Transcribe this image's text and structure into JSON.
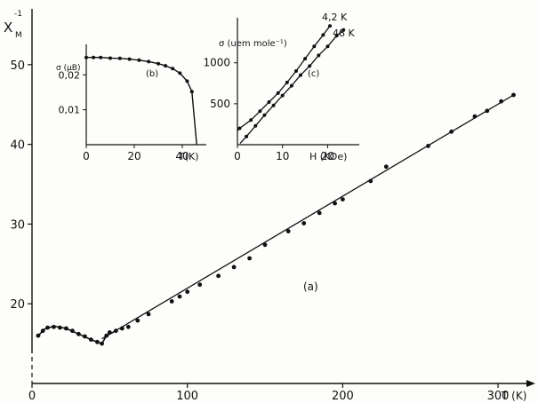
{
  "chart_data": [
    {
      "panel": "(a)",
      "type": "scatter",
      "ylabel": "X",
      "ylabel_sub": "M",
      "ylabel_sup": "-1",
      "xlabel": "T (K)",
      "xlim": [
        0,
        320
      ],
      "ylim": [
        10,
        57
      ],
      "xticks": [
        0,
        100,
        200,
        300
      ],
      "xtick_labels": [
        "0",
        "100",
        "200",
        "300"
      ],
      "yticks": [
        20,
        30,
        40,
        50
      ],
      "ytick_labels": [
        "20",
        "30",
        "40",
        "50"
      ],
      "points": [
        [
          4,
          16.0
        ],
        [
          7,
          16.6
        ],
        [
          10,
          17.0
        ],
        [
          14,
          17.1
        ],
        [
          18,
          17.0
        ],
        [
          22,
          16.9
        ],
        [
          26,
          16.6
        ],
        [
          30,
          16.2
        ],
        [
          34,
          15.9
        ],
        [
          38,
          15.5
        ],
        [
          42,
          15.2
        ],
        [
          45,
          15.0
        ],
        [
          48,
          16.0
        ],
        [
          50,
          16.4
        ],
        [
          54,
          16.6
        ],
        [
          58,
          16.9
        ],
        [
          62,
          17.1
        ],
        [
          68,
          17.9
        ],
        [
          75,
          18.7
        ],
        [
          90,
          20.3
        ],
        [
          95,
          20.9
        ],
        [
          100,
          21.5
        ],
        [
          108,
          22.4
        ],
        [
          120,
          23.5
        ],
        [
          130,
          24.6
        ],
        [
          140,
          25.7
        ],
        [
          150,
          27.4
        ],
        [
          165,
          29.1
        ],
        [
          175,
          30.1
        ],
        [
          185,
          31.4
        ],
        [
          195,
          32.6
        ],
        [
          200,
          33.1
        ],
        [
          218,
          35.4
        ],
        [
          228,
          37.2
        ],
        [
          255,
          39.8
        ],
        [
          270,
          41.6
        ],
        [
          285,
          43.5
        ],
        [
          293,
          44.2
        ],
        [
          302,
          45.4
        ],
        [
          310,
          46.2
        ]
      ],
      "fit_line": [
        [
          45,
          15.6
        ],
        [
          310,
          46.2
        ]
      ],
      "low_temp_curve": [
        [
          3,
          15.8
        ],
        [
          8,
          16.8
        ],
        [
          14,
          17.2
        ],
        [
          22,
          16.9
        ],
        [
          30,
          16.2
        ],
        [
          38,
          15.5
        ],
        [
          45,
          15.0
        ],
        [
          48,
          16.0
        ],
        [
          55,
          16.7
        ]
      ]
    },
    {
      "panel": "(b)",
      "type": "scatter",
      "ylabel": "σ (μB)",
      "xlabel": "T(K)",
      "xlim": [
        0,
        50
      ],
      "ylim": [
        0,
        0.03
      ],
      "xticks": [
        0,
        20,
        40
      ],
      "xtick_labels": [
        "0",
        "20",
        "40"
      ],
      "yticks": [
        0.01,
        0.02
      ],
      "ytick_labels": [
        "0,01",
        "0,02"
      ],
      "points": [
        [
          0,
          0.025
        ],
        [
          3,
          0.025
        ],
        [
          6,
          0.025
        ],
        [
          10,
          0.0248
        ],
        [
          14,
          0.0247
        ],
        [
          18,
          0.0245
        ],
        [
          22,
          0.0242
        ],
        [
          26,
          0.0238
        ],
        [
          30,
          0.0232
        ],
        [
          33,
          0.0226
        ],
        [
          36,
          0.0218
        ],
        [
          39,
          0.0205
        ],
        [
          42,
          0.0182
        ],
        [
          44,
          0.0152
        ],
        [
          46,
          0.0
        ]
      ]
    },
    {
      "panel": "(c)",
      "type": "scatter",
      "ylabel": "σ (uem mole⁻¹)",
      "xlabel": "H (KOe)",
      "xlim": [
        0,
        27
      ],
      "ylim": [
        0,
        1550
      ],
      "xticks": [
        0,
        10,
        20
      ],
      "xtick_labels": [
        "0",
        "10",
        "20"
      ],
      "yticks": [
        500,
        1000
      ],
      "ytick_labels": [
        "500",
        "1000"
      ],
      "series": [
        {
          "name": "4,2 K",
          "points": [
            [
              0.5,
              200
            ],
            [
              3,
              300
            ],
            [
              5,
              410
            ],
            [
              7,
              520
            ],
            [
              9,
              630
            ],
            [
              11,
              760
            ],
            [
              13,
              900
            ],
            [
              15,
              1050
            ],
            [
              17,
              1200
            ],
            [
              19,
              1340
            ],
            [
              20.5,
              1450
            ]
          ]
        },
        {
          "name": "48 K",
          "points": [
            [
              2,
              100
            ],
            [
              4,
              230
            ],
            [
              6,
              360
            ],
            [
              8,
              480
            ],
            [
              10,
              600
            ],
            [
              12,
              720
            ],
            [
              14,
              850
            ],
            [
              16,
              960
            ],
            [
              18,
              1090
            ],
            [
              20,
              1200
            ],
            [
              22,
              1330
            ],
            [
              23.5,
              1400
            ]
          ]
        }
      ]
    }
  ]
}
